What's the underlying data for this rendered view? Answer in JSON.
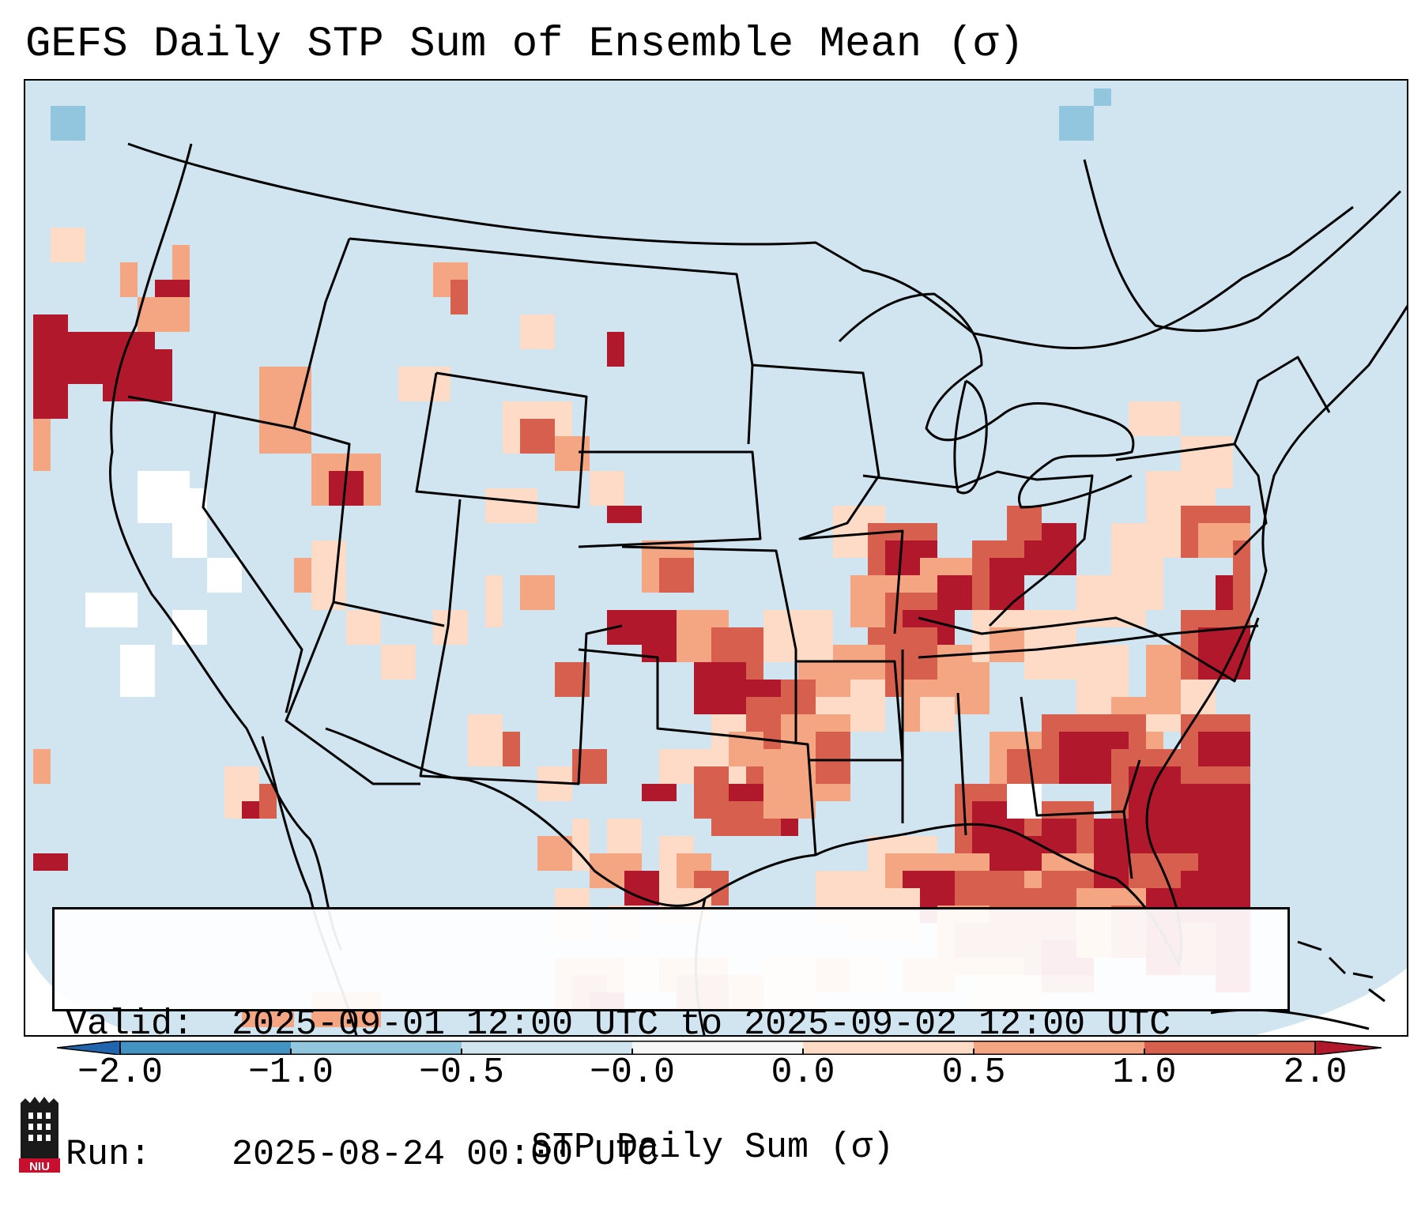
{
  "title": "GEFS Daily STP Sum of Ensemble Mean (σ)",
  "info": {
    "valid_label": "Valid:",
    "valid_value": "2025-09-01 12:00 UTC to 2025-09-02 12:00 UTC",
    "run_label": "Run:",
    "run_value": "2025-08-24 00:00 UTC"
  },
  "colorbar": {
    "label": "STP Daily Sum (σ)",
    "ticks": [
      "−2.0",
      "−1.0",
      "−0.5",
      "−0.0",
      "0.0",
      "0.5",
      "1.0",
      "2.0"
    ],
    "bins": [
      {
        "min": -99,
        "max": -2.0,
        "color": "#2166ac"
      },
      {
        "min": -2.0,
        "max": -1.0,
        "color": "#4393c3"
      },
      {
        "min": -1.0,
        "max": -0.5,
        "color": "#92c5de"
      },
      {
        "min": -0.5,
        "max": 0.0,
        "color": "#d1e5f0"
      },
      {
        "min": 0.0,
        "max": 0.0,
        "color": "#f7f7f7"
      },
      {
        "min": 0.0,
        "max": 0.5,
        "color": "#fddbc7"
      },
      {
        "min": 0.5,
        "max": 1.0,
        "color": "#f4a582"
      },
      {
        "min": 1.0,
        "max": 2.0,
        "color": "#d6604d"
      },
      {
        "min": 2.0,
        "max": 99,
        "color": "#b2182b"
      }
    ]
  },
  "colors": {
    "ocean_land_neutral": "#d1e5f0",
    "white_zero": "#ffffff",
    "light_red": "#fddbc7",
    "medium_red": "#f4a582",
    "red": "#d6604d",
    "dark_red": "#b2182b",
    "light_blue": "#92c5de"
  },
  "logo": {
    "text": "NIU"
  }
}
